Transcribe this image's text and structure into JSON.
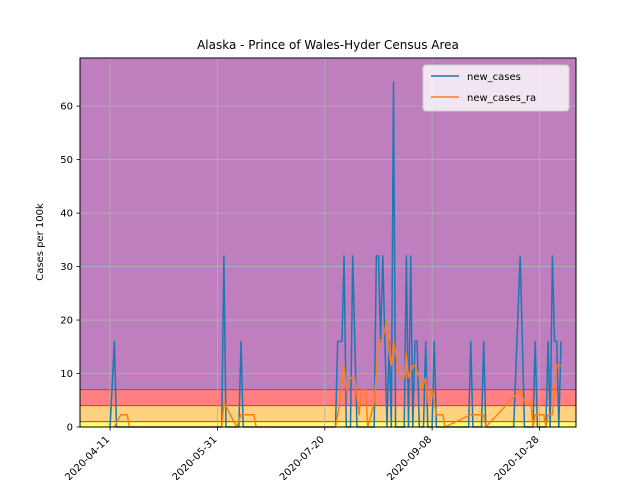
{
  "chart_data": {
    "type": "line",
    "title": "Alaska - Prince of Wales-Hyder Census Area",
    "xlabel": "",
    "ylabel": "Cases per 100k",
    "x_range": [
      "2020-03-28",
      "2020-11-14"
    ],
    "ylim": [
      0,
      69
    ],
    "x_ticks": [
      "2020-04-11",
      "2020-05-31",
      "2020-07-20",
      "2020-09-08",
      "2020-10-28"
    ],
    "y_ticks": [
      0,
      10,
      20,
      30,
      40,
      50,
      60
    ],
    "grid": true,
    "legend_position": "top-right",
    "risk_bands": [
      {
        "from": 0,
        "to": 1,
        "color": "#ffff66"
      },
      {
        "from": 1,
        "to": 4,
        "color": "#ffd27f"
      },
      {
        "from": 4,
        "to": 7,
        "color": "#ff8080"
      },
      {
        "from": 7,
        "to": 69,
        "color": "#bf7fbf"
      }
    ],
    "band_edge_color": "#cc3366",
    "series": [
      {
        "name": "new_cases",
        "color": "#1f77b4",
        "points": [
          [
            "2020-04-11",
            0
          ],
          [
            "2020-04-13",
            16
          ],
          [
            "2020-04-14",
            0
          ],
          [
            "2020-06-02",
            0
          ],
          [
            "2020-06-03",
            32
          ],
          [
            "2020-06-04",
            0
          ],
          [
            "2020-06-10",
            0
          ],
          [
            "2020-06-11",
            16
          ],
          [
            "2020-06-12",
            0
          ],
          [
            "2020-07-25",
            0
          ],
          [
            "2020-07-26",
            16
          ],
          [
            "2020-07-28",
            16
          ],
          [
            "2020-07-29",
            32
          ],
          [
            "2020-07-30",
            0
          ],
          [
            "2020-08-01",
            0
          ],
          [
            "2020-08-02",
            32
          ],
          [
            "2020-08-03",
            16
          ],
          [
            "2020-08-04",
            0
          ],
          [
            "2020-08-12",
            0
          ],
          [
            "2020-08-13",
            32
          ],
          [
            "2020-08-14",
            32
          ],
          [
            "2020-08-15",
            16
          ],
          [
            "2020-08-16",
            32
          ],
          [
            "2020-08-17",
            16
          ],
          [
            "2020-08-18",
            0
          ],
          [
            "2020-08-19",
            16
          ],
          [
            "2020-08-20",
            0
          ],
          [
            "2020-08-21",
            64.5
          ],
          [
            "2020-08-22",
            0
          ],
          [
            "2020-08-26",
            0
          ],
          [
            "2020-08-27",
            32
          ],
          [
            "2020-08-28",
            0
          ],
          [
            "2020-08-29",
            32
          ],
          [
            "2020-08-30",
            0
          ],
          [
            "2020-08-31",
            16
          ],
          [
            "2020-09-01",
            16
          ],
          [
            "2020-09-02",
            0
          ],
          [
            "2020-09-04",
            0
          ],
          [
            "2020-09-05",
            16
          ],
          [
            "2020-09-06",
            0
          ],
          [
            "2020-09-08",
            0
          ],
          [
            "2020-09-09",
            16
          ],
          [
            "2020-09-10",
            0
          ],
          [
            "2020-09-25",
            0
          ],
          [
            "2020-09-26",
            16
          ],
          [
            "2020-09-27",
            0
          ],
          [
            "2020-10-01",
            0
          ],
          [
            "2020-10-02",
            16
          ],
          [
            "2020-10-03",
            0
          ],
          [
            "2020-10-16",
            0
          ],
          [
            "2020-10-19",
            32
          ],
          [
            "2020-10-21",
            0
          ],
          [
            "2020-10-25",
            0
          ],
          [
            "2020-10-26",
            16
          ],
          [
            "2020-10-27",
            0
          ],
          [
            "2020-10-31",
            0
          ],
          [
            "2020-11-01",
            16
          ],
          [
            "2020-11-02",
            0
          ],
          [
            "2020-11-03",
            32
          ],
          [
            "2020-11-04",
            16
          ],
          [
            "2020-11-05",
            16
          ],
          [
            "2020-11-06",
            0
          ],
          [
            "2020-11-07",
            16
          ]
        ]
      },
      {
        "name": "new_cases_ra",
        "color": "#ff7f0e",
        "points": [
          [
            "2020-04-13",
            0
          ],
          [
            "2020-04-16",
            2.3
          ],
          [
            "2020-04-19",
            2.3
          ],
          [
            "2020-04-20",
            0
          ],
          [
            "2020-06-02",
            0
          ],
          [
            "2020-06-03",
            4.6
          ],
          [
            "2020-06-09",
            0
          ],
          [
            "2020-06-11",
            2.3
          ],
          [
            "2020-06-17",
            2.3
          ],
          [
            "2020-06-18",
            0
          ],
          [
            "2020-07-25",
            0
          ],
          [
            "2020-07-27",
            4.6
          ],
          [
            "2020-07-29",
            11.5
          ],
          [
            "2020-07-30",
            6.9
          ],
          [
            "2020-08-01",
            9.2
          ],
          [
            "2020-08-03",
            9.2
          ],
          [
            "2020-08-05",
            2.3
          ],
          [
            "2020-08-06",
            6.9
          ],
          [
            "2020-08-08",
            6.9
          ],
          [
            "2020-08-09",
            0
          ],
          [
            "2020-08-12",
            4.6
          ],
          [
            "2020-08-14",
            16
          ],
          [
            "2020-08-16",
            16.5
          ],
          [
            "2020-08-18",
            20
          ],
          [
            "2020-08-19",
            14
          ],
          [
            "2020-08-20",
            11.5
          ],
          [
            "2020-08-21",
            16
          ],
          [
            "2020-08-23",
            11.5
          ],
          [
            "2020-08-24",
            9.2
          ],
          [
            "2020-08-26",
            9.2
          ],
          [
            "2020-08-27",
            13.8
          ],
          [
            "2020-08-28",
            9.2
          ],
          [
            "2020-08-30",
            11.5
          ],
          [
            "2020-08-31",
            11.5
          ],
          [
            "2020-09-02",
            9.2
          ],
          [
            "2020-09-03",
            6.9
          ],
          [
            "2020-09-05",
            9.2
          ],
          [
            "2020-09-06",
            4.6
          ],
          [
            "2020-09-08",
            6.9
          ],
          [
            "2020-09-10",
            2.3
          ],
          [
            "2020-09-13",
            2.3
          ],
          [
            "2020-09-14",
            0
          ],
          [
            "2020-09-26",
            2.3
          ],
          [
            "2020-10-02",
            2.3
          ],
          [
            "2020-10-03",
            0
          ],
          [
            "2020-10-19",
            6.9
          ],
          [
            "2020-10-21",
            4.6
          ],
          [
            "2020-10-24",
            4.6
          ],
          [
            "2020-10-25",
            0
          ],
          [
            "2020-10-26",
            2.3
          ],
          [
            "2020-10-30",
            2.3
          ],
          [
            "2020-10-31",
            0
          ],
          [
            "2020-11-01",
            2.3
          ],
          [
            "2020-11-03",
            2.3
          ],
          [
            "2020-11-05",
            11.5
          ],
          [
            "2020-11-07",
            11.5
          ]
        ]
      }
    ]
  }
}
